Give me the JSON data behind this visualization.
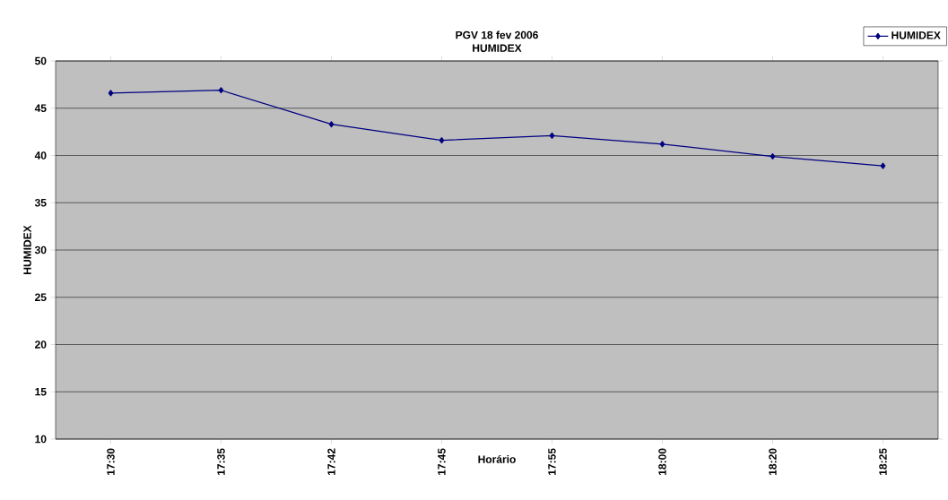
{
  "chart_data": {
    "type": "line",
    "title": "PGV 18 fev 2006",
    "subtitle": "HUMIDEX",
    "xlabel": "Horário",
    "ylabel": "HUMIDEX",
    "categories": [
      "17:30",
      "17:35",
      "17:42",
      "17:45",
      "17:55",
      "18:00",
      "18:20",
      "18:25"
    ],
    "series": [
      {
        "name": "HUMIDEX",
        "color": "#000080",
        "values": [
          46.6,
          46.9,
          43.3,
          41.6,
          42.1,
          41.2,
          39.9,
          38.9
        ]
      }
    ],
    "ylim": [
      10,
      50
    ],
    "yticks": [
      10,
      15,
      20,
      25,
      30,
      35,
      40,
      45,
      50
    ],
    "grid": "y",
    "legend": "top right",
    "marker": "diamond",
    "line_style": "solid"
  }
}
